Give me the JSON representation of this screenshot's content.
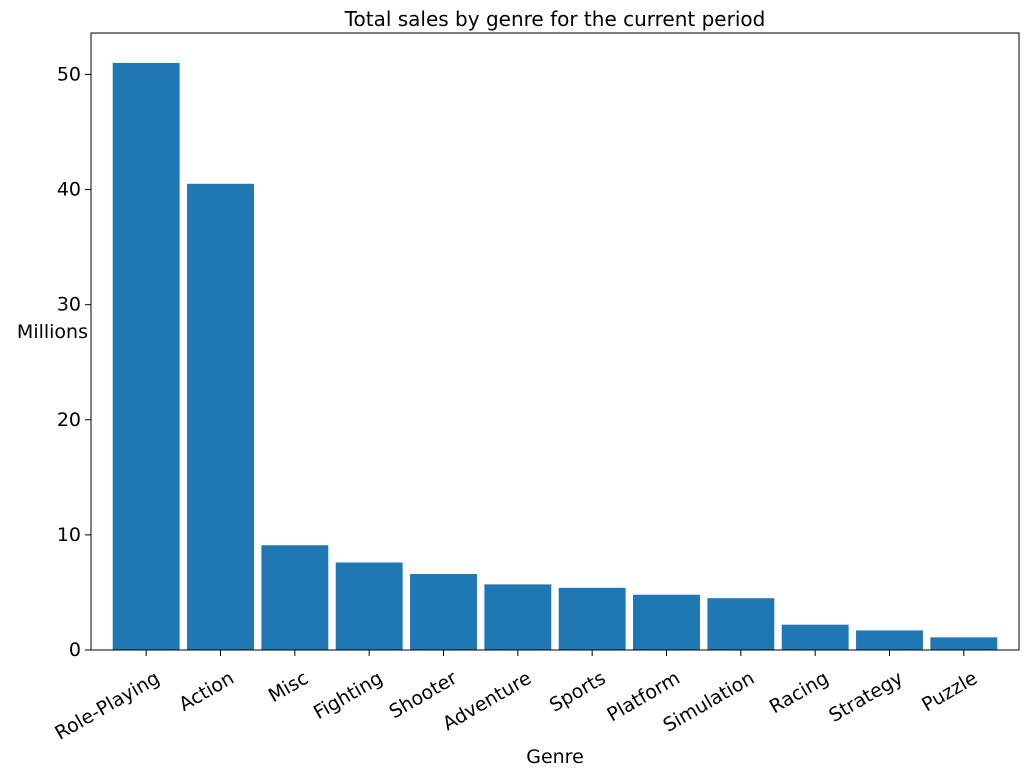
{
  "chart_data": {
    "type": "bar",
    "title": "Total sales by genre for the current period",
    "xlabel": "Genre",
    "ylabel": "Millions",
    "categories": [
      "Role-Playing",
      "Action",
      "Misc",
      "Fighting",
      "Shooter",
      "Adventure",
      "Sports",
      "Platform",
      "Simulation",
      "Racing",
      "Strategy",
      "Puzzle"
    ],
    "values": [
      51.0,
      40.5,
      9.1,
      7.6,
      6.6,
      5.7,
      5.4,
      4.8,
      4.5,
      2.2,
      1.7,
      1.1
    ],
    "ylim": [
      0,
      53.6
    ],
    "yticks": [
      0,
      10,
      20,
      30,
      40,
      50
    ],
    "grid": false,
    "bar_color": "#1f77b4"
  }
}
